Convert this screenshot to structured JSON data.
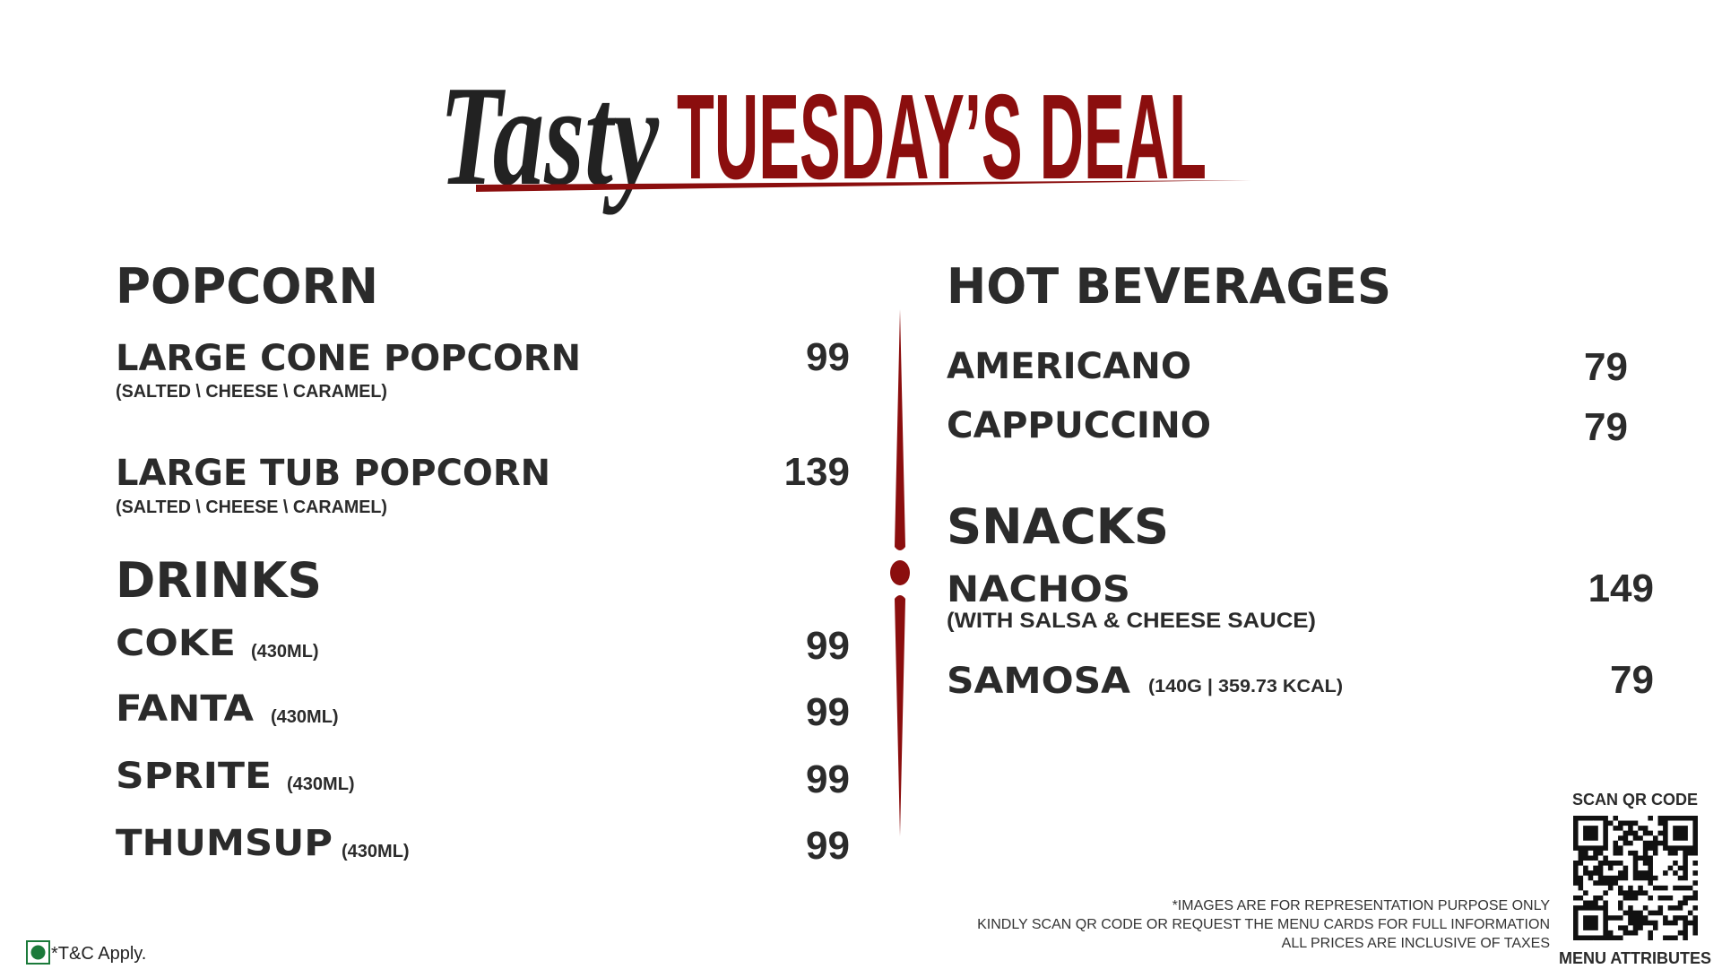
{
  "header": {
    "script": "Tasty",
    "title": "TUESDAY’S DEAL"
  },
  "left": [
    {
      "title": "POPCORN",
      "items": [
        {
          "name": "LARGE CONE POPCORN",
          "note": "(SALTED \\ CHEESE \\ CARAMEL)",
          "price": 99
        },
        {
          "name": "LARGE TUB POPCORN",
          "note": "(SALTED \\ CHEESE \\ CARAMEL)",
          "price": 139
        }
      ]
    },
    {
      "title": "DRINKS",
      "items": [
        {
          "name": "COKE",
          "note": "(430ML)",
          "price": 99
        },
        {
          "name": "FANTA",
          "note": "(430ML)",
          "price": 99
        },
        {
          "name": "SPRITE",
          "note": "(430ML)",
          "price": 99
        },
        {
          "name": "THUMSUP",
          "note": "(430ML)",
          "price": 99
        }
      ]
    }
  ],
  "right": [
    {
      "title": "HOT BEVERAGES",
      "items": [
        {
          "name": "AMERICANO",
          "price": 79
        },
        {
          "name": "CAPPUCCINO",
          "price": 79
        }
      ]
    },
    {
      "title": "SNACKS",
      "items": [
        {
          "name": "NACHOS",
          "note": "(WITH SALSA & CHEESE SAUCE)",
          "price": 149
        },
        {
          "name": "SAMOSA",
          "note": "(140G | 359.73 KCAL)",
          "price": 79
        }
      ]
    }
  ],
  "footer": {
    "notes": [
      "*IMAGES ARE FOR REPRESENTATION PURPOSE ONLY",
      "KINDLY SCAN QR CODE OR REQUEST THE MENU CARDS FOR FULL INFORMATION",
      "ALL PRICES ARE INCLUSIVE OF TAXES"
    ],
    "terms": "*T&C Apply."
  },
  "qr": {
    "top": "SCAN QR CODE",
    "bottom": "MENU ATTRIBUTES"
  }
}
